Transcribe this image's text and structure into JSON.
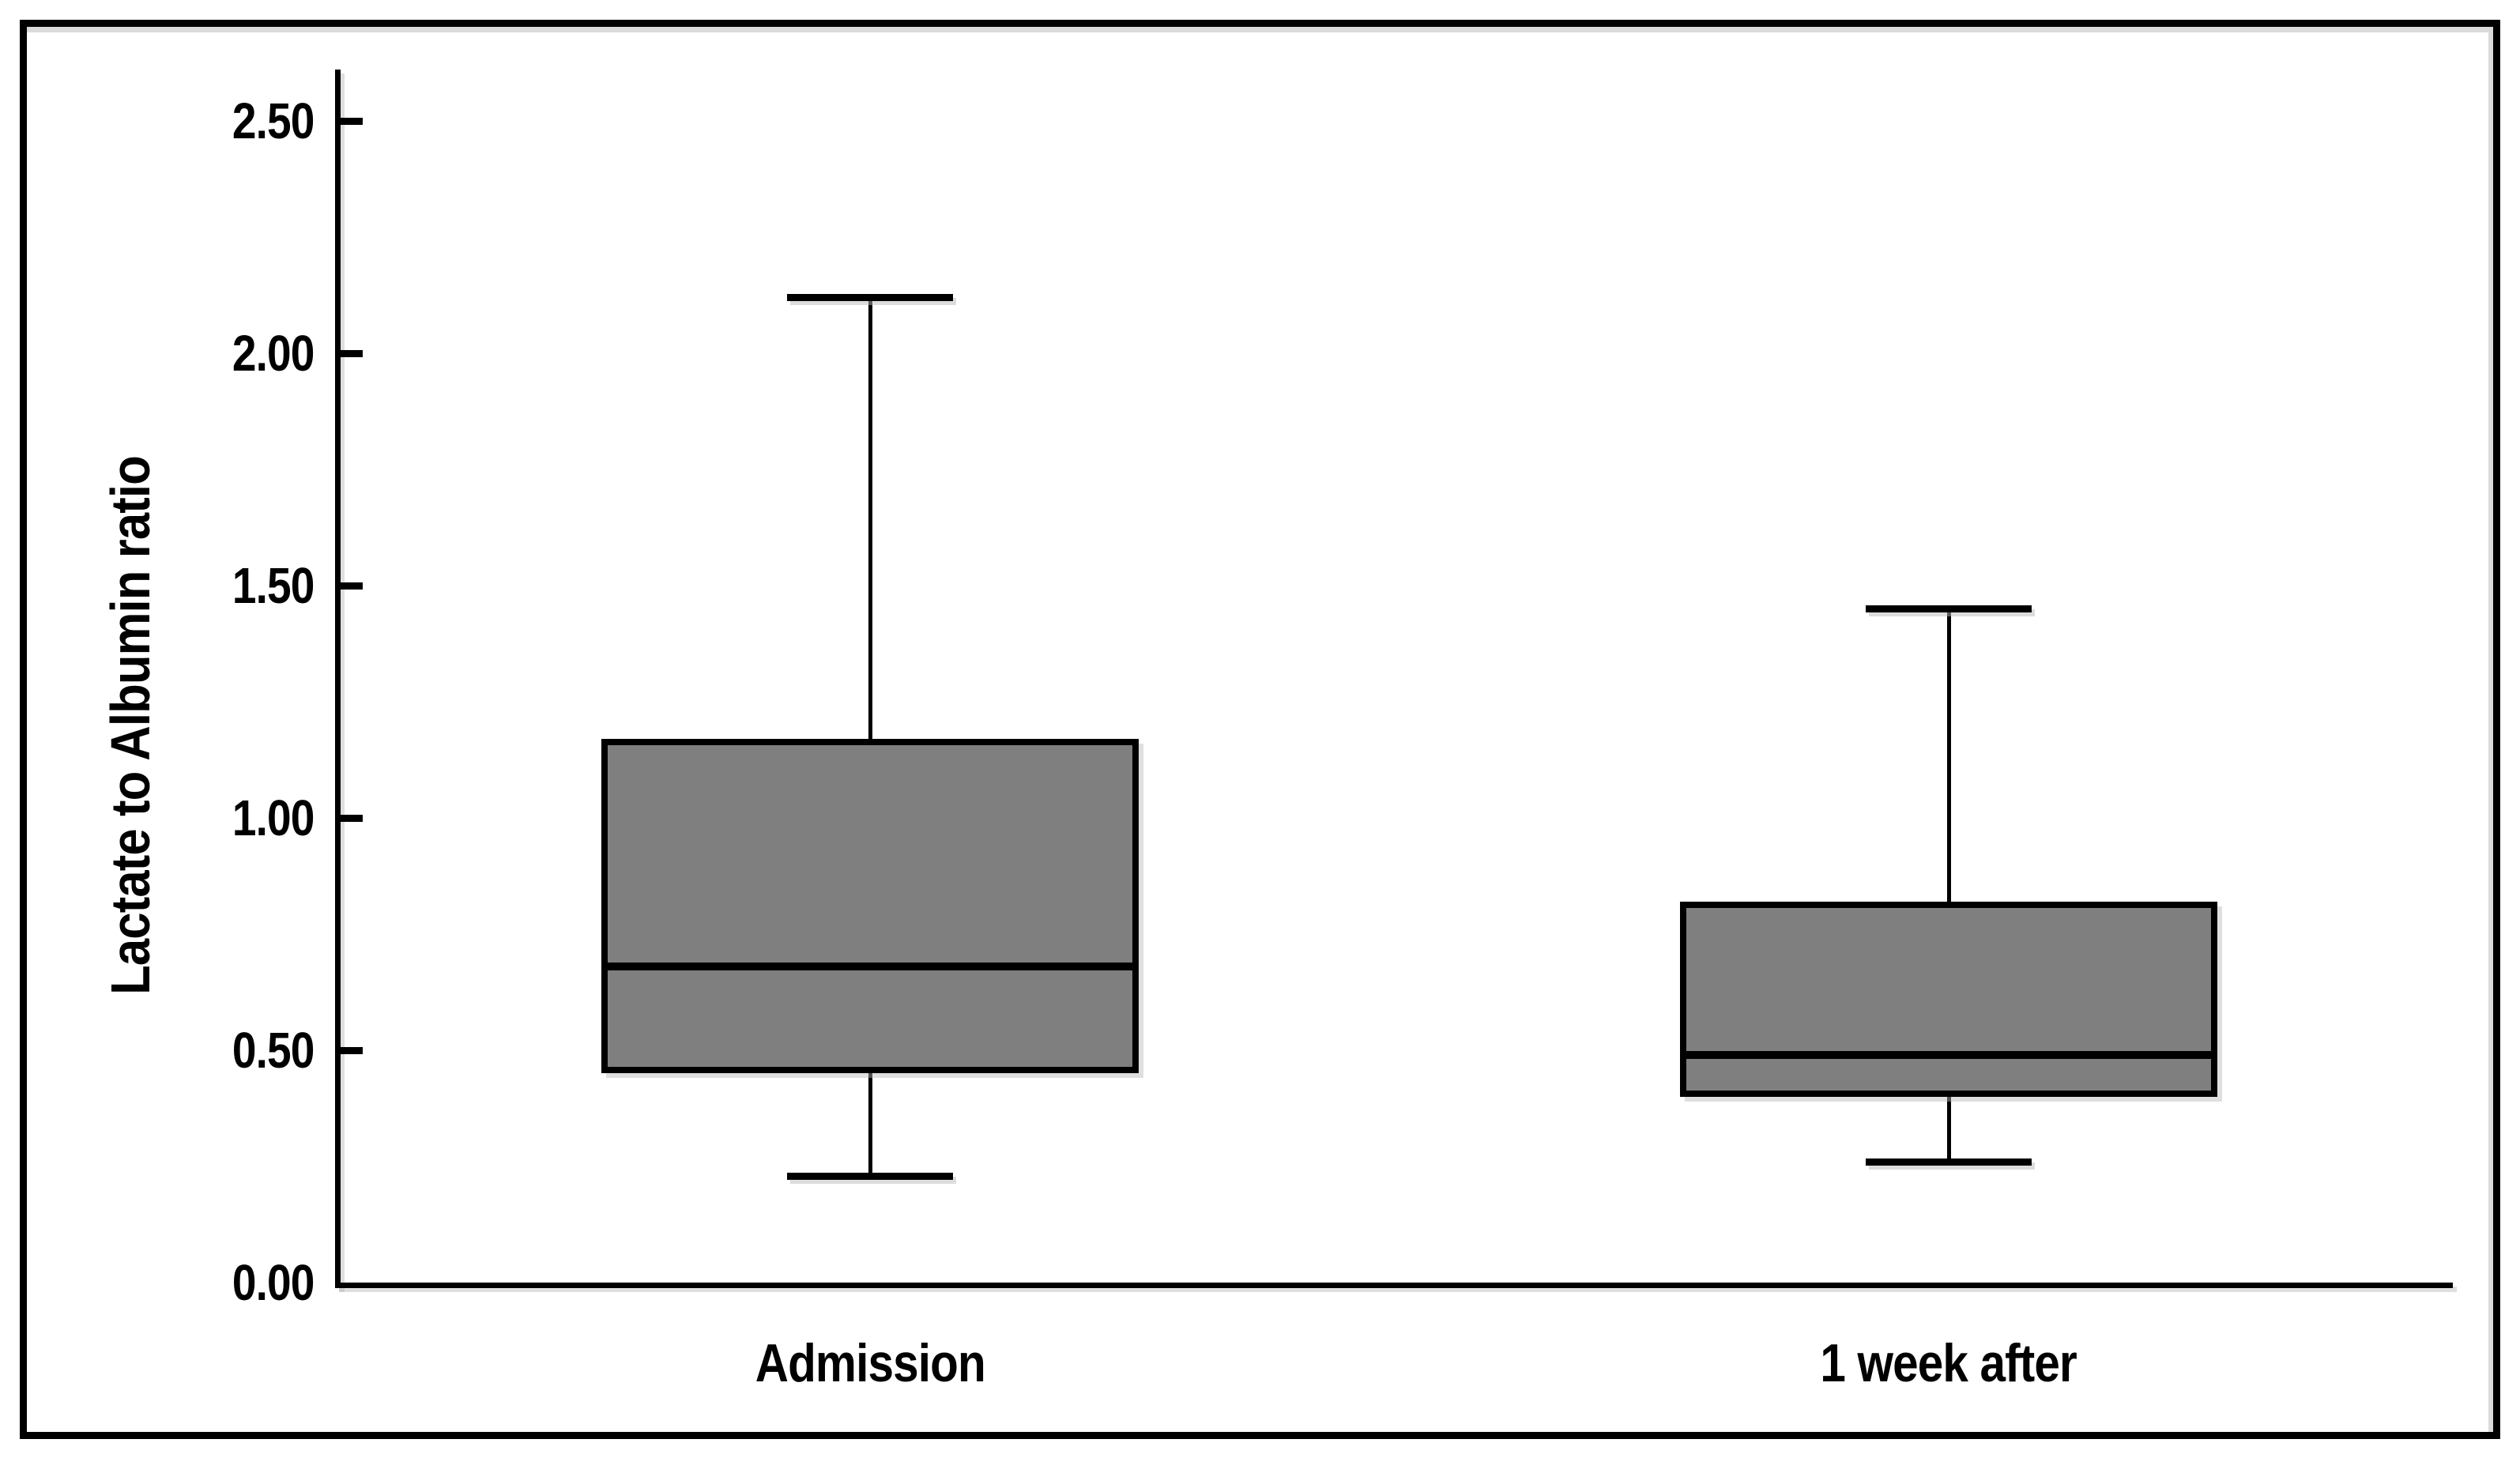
{
  "figure": {
    "background": "#ffffff",
    "border_color": "#000000"
  },
  "chart_data": {
    "type": "box",
    "title": "",
    "xlabel": "",
    "ylabel": "Lactate to Albumin ratio",
    "categories": [
      "Admission",
      "1 week after"
    ],
    "yticks": [
      {
        "v": 0.0,
        "label": "0.00"
      },
      {
        "v": 0.5,
        "label": "0.50"
      },
      {
        "v": 1.0,
        "label": "1.00"
      },
      {
        "v": 1.5,
        "label": "1.50"
      },
      {
        "v": 2.0,
        "label": "2.00"
      },
      {
        "v": 2.5,
        "label": "2.50"
      }
    ],
    "ylim": [
      0,
      2.61
    ],
    "grid": false,
    "legend": "none",
    "box_fill": "#7f7f7f",
    "line_color": "#000000",
    "series": [
      {
        "name": "Admission",
        "whisker_low": 0.23,
        "q1": 0.45,
        "median": 0.68,
        "q3": 1.17,
        "whisker_high": 2.12
      },
      {
        "name": "1 week after",
        "whisker_low": 0.26,
        "q1": 0.4,
        "median": 0.49,
        "q3": 0.82,
        "whisker_high": 1.45
      }
    ]
  }
}
